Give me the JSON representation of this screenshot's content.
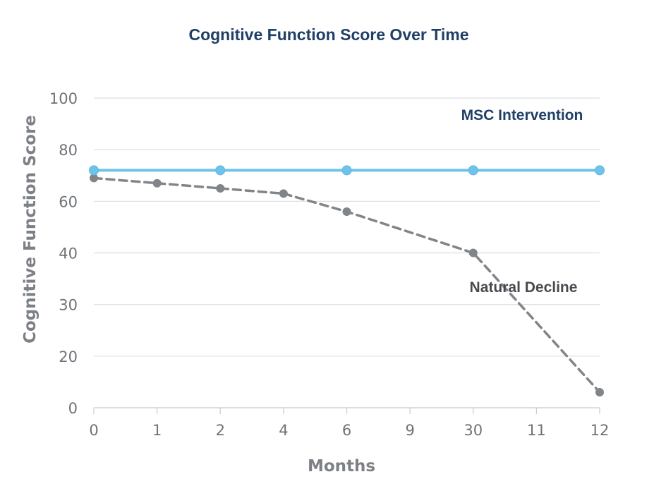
{
  "chart_data": {
    "type": "line",
    "title": "Cognitive Function Score Over Time",
    "xlabel": "Months",
    "ylabel": "Cognitive Function Score",
    "categories": [
      "0",
      "1",
      "2",
      "4",
      "6",
      "9",
      "30",
      "11",
      "12"
    ],
    "y_ticks": [
      "100",
      "80",
      "60",
      "40",
      "30",
      "20",
      "0"
    ],
    "grid": true,
    "series": [
      {
        "name": "MSC Intervention",
        "color": "#6ec3ea",
        "style": "solid",
        "points": [
          {
            "x": "0",
            "y": 72
          },
          {
            "x": "2",
            "y": 72
          },
          {
            "x": "6",
            "y": 72
          },
          {
            "x": "30",
            "y": 72
          },
          {
            "x": "12",
            "y": 72
          }
        ]
      },
      {
        "name": "Natural Decline",
        "color": "#818589",
        "style": "dashed",
        "points": [
          {
            "x": "0",
            "y": 69
          },
          {
            "x": "1",
            "y": 67
          },
          {
            "x": "2",
            "y": 65
          },
          {
            "x": "4",
            "y": 63
          },
          {
            "x": "6",
            "y": 56
          },
          {
            "x": "30",
            "y": 40
          },
          {
            "x": "12",
            "y": 6
          }
        ]
      }
    ]
  },
  "colors": {
    "title": "#1f3f66",
    "msc_label": "#1f3f66",
    "decline_label": "#474a4e",
    "grid": "#dcdde0",
    "axis": "#c8cacd"
  }
}
